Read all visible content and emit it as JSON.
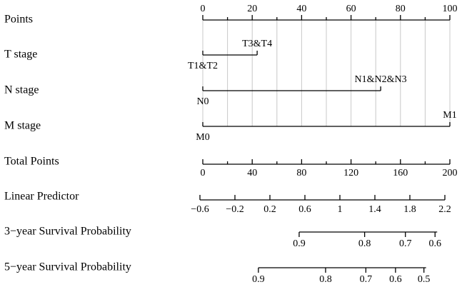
{
  "chart_data": {
    "type": "nomogram",
    "points_axis": {
      "name": "Points",
      "xlim": [
        0,
        100
      ],
      "ticks": [
        0,
        20,
        40,
        60,
        80,
        100
      ],
      "minor_ticks": [
        10,
        30,
        50,
        70,
        90
      ]
    },
    "variables": [
      {
        "name": "T stage",
        "levels": [
          "T1&T2",
          "T3&T4"
        ],
        "points": [
          0,
          22
        ]
      },
      {
        "name": "N stage",
        "levels": [
          "N0",
          "N1&N2&N3"
        ],
        "points": [
          0,
          72
        ]
      },
      {
        "name": "M stage",
        "levels": [
          "M0",
          "M1"
        ],
        "points": [
          0,
          100
        ]
      }
    ],
    "total_points": {
      "name": "Total Points",
      "xlim": [
        0,
        200
      ],
      "ticks": [
        0,
        40,
        80,
        120,
        160,
        200
      ],
      "minor_ticks": [
        20,
        60,
        100,
        140,
        180
      ]
    },
    "linear_predictor": {
      "name": "Linear Predictor",
      "xlim": [
        -0.6,
        2.2
      ],
      "ticks": [
        {
          "value": -0.6,
          "label": "−0.6"
        },
        {
          "value": -0.2,
          "label": "−0.2"
        },
        0.2,
        0.6,
        1,
        1.4,
        1.8,
        2.2
      ]
    },
    "survival": [
      {
        "name": "3−year Survival Probability",
        "ticks": [
          0.9,
          0.8,
          0.7,
          0.6
        ],
        "total_points": [
          78,
          131,
          164,
          188
        ]
      },
      {
        "name": "5−year Survival Probability",
        "ticks": [
          0.9,
          0.8,
          0.7,
          0.6,
          0.5
        ],
        "total_points": [
          45,
          99.4,
          132,
          156,
          179
        ]
      }
    ]
  }
}
